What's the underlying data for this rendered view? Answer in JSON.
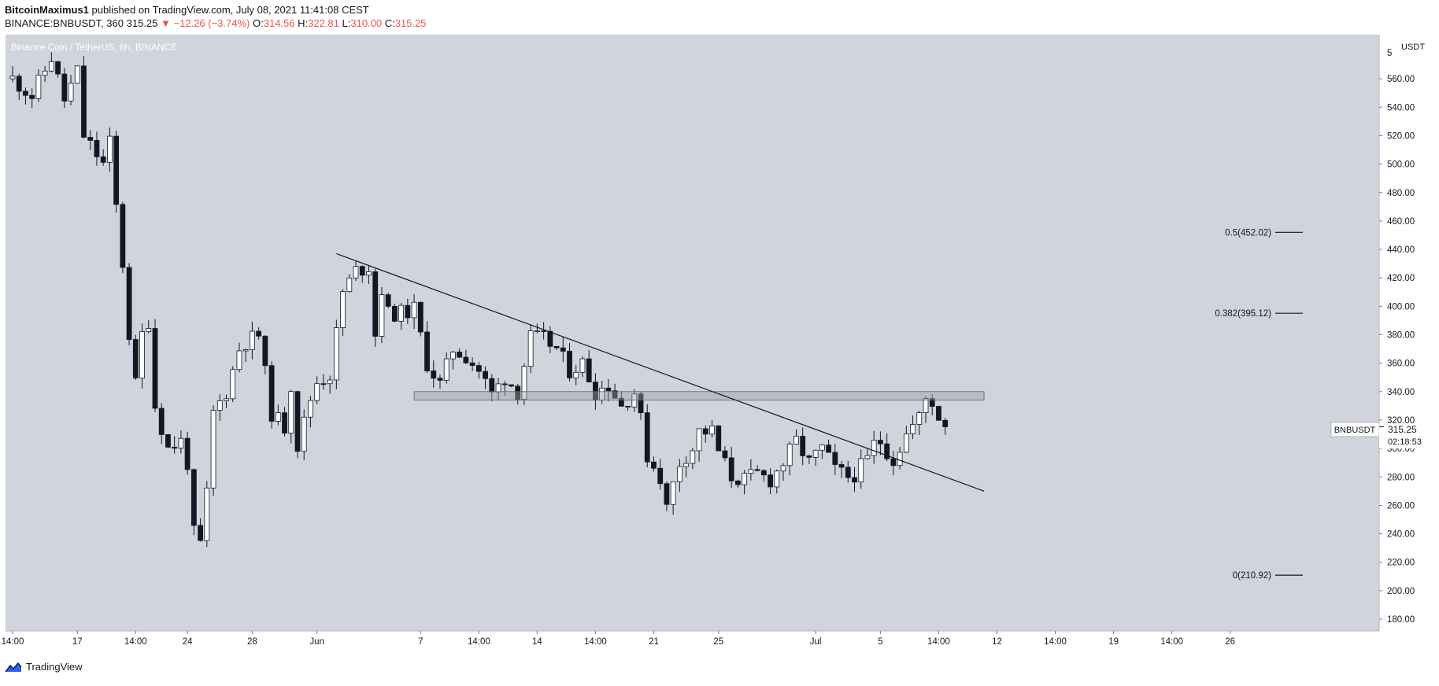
{
  "header": {
    "author": "BitcoinMaximus1",
    "published_text": "published on TradingView.com, July 08, 2021 11:41:08 CEST",
    "symbol_line": "BINANCE:BNBUSDT, 360",
    "last": "315.25",
    "change": "−12.26 (−3.74%)",
    "o_label": "O:",
    "o_val": "314.56",
    "h_label": "H:",
    "h_val": "322.81",
    "l_label": "L:",
    "l_val": "310.00",
    "c_label": "C:",
    "c_val": "315.25"
  },
  "chart_title": "Binance Coin / TetherUS, 6h, BINANCE",
  "price_axis": {
    "unit": "USDT",
    "current_label": "315.25",
    "countdown": "02:18:53",
    "symbol_tag": "BNBUSDT"
  },
  "footer": {
    "brand": "TradingView"
  },
  "colors": {
    "background": "#d1d4dc",
    "up": "#ffffff",
    "down": "#131722",
    "accent_down": "#ef5350"
  },
  "chart_data": {
    "type": "candlestick",
    "ylim": [
      170,
      580
    ],
    "y_ticks": [
      180,
      200,
      220,
      240,
      260,
      280,
      300,
      320,
      340,
      360,
      380,
      400,
      420,
      440,
      460,
      480,
      500,
      520,
      540,
      560
    ],
    "y_tick_top_partial": "5",
    "x_ticks": [
      {
        "label": "14:00",
        "t": 0
      },
      {
        "label": "17",
        "t": 10
      },
      {
        "label": "14:00",
        "t": 19
      },
      {
        "label": "24",
        "t": 27
      },
      {
        "label": "28",
        "t": 37
      },
      {
        "label": "Jun",
        "t": 47
      },
      {
        "label": "7",
        "t": 63
      },
      {
        "label": "14:00",
        "t": 72
      },
      {
        "label": "14",
        "t": 81
      },
      {
        "label": "14:00",
        "t": 90
      },
      {
        "label": "21",
        "t": 99
      },
      {
        "label": "25",
        "t": 109
      },
      {
        "label": "Jul",
        "t": 124
      },
      {
        "label": "5",
        "t": 134
      },
      {
        "label": "14:00",
        "t": 143
      },
      {
        "label": "12",
        "t": 152
      },
      {
        "label": "14:00",
        "t": 161
      },
      {
        "label": "19",
        "t": 170
      },
      {
        "label": "14:00",
        "t": 179
      },
      {
        "label": "26",
        "t": 188
      }
    ],
    "anchors": [
      [
        0,
        560
      ],
      [
        3,
        548
      ],
      [
        6,
        575
      ],
      [
        8,
        545
      ],
      [
        10,
        565
      ],
      [
        11,
        520
      ],
      [
        14,
        500
      ],
      [
        15,
        515
      ],
      [
        16,
        470
      ],
      [
        17,
        430
      ],
      [
        18,
        380
      ],
      [
        19,
        345
      ],
      [
        20,
        380
      ],
      [
        21,
        390
      ],
      [
        22,
        330
      ],
      [
        24,
        300
      ],
      [
        26,
        305
      ],
      [
        27,
        290
      ],
      [
        28,
        240
      ],
      [
        29,
        232
      ],
      [
        30,
        268
      ],
      [
        31,
        325
      ],
      [
        33,
        340
      ],
      [
        35,
        370
      ],
      [
        36,
        375
      ],
      [
        38,
        380
      ],
      [
        40,
        325
      ],
      [
        42,
        315
      ],
      [
        43,
        345
      ],
      [
        44,
        302
      ],
      [
        46,
        335
      ],
      [
        47,
        347
      ],
      [
        49,
        352
      ],
      [
        51,
        410
      ],
      [
        53,
        425
      ],
      [
        55,
        428
      ],
      [
        56,
        380
      ],
      [
        57,
        412
      ],
      [
        58,
        395
      ],
      [
        60,
        395
      ],
      [
        62,
        398
      ],
      [
        64,
        360
      ],
      [
        66,
        345
      ],
      [
        68,
        370
      ],
      [
        70,
        365
      ],
      [
        72,
        355
      ],
      [
        74,
        338
      ],
      [
        76,
        350
      ],
      [
        78,
        340
      ],
      [
        80,
        378
      ],
      [
        82,
        377
      ],
      [
        84,
        370
      ],
      [
        86,
        355
      ],
      [
        88,
        360
      ],
      [
        90,
        340
      ],
      [
        92,
        345
      ],
      [
        94,
        330
      ],
      [
        96,
        340
      ],
      [
        97,
        320
      ],
      [
        98,
        295
      ],
      [
        100,
        280
      ],
      [
        101,
        258
      ],
      [
        102,
        275
      ],
      [
        103,
        290
      ],
      [
        105,
        300
      ],
      [
        106,
        312
      ],
      [
        108,
        312
      ],
      [
        109,
        298
      ],
      [
        111,
        280
      ],
      [
        113,
        278
      ],
      [
        115,
        282
      ],
      [
        117,
        278
      ],
      [
        119,
        290
      ],
      [
        121,
        305
      ],
      [
        123,
        290
      ],
      [
        125,
        300
      ],
      [
        127,
        285
      ],
      [
        129,
        280
      ],
      [
        130,
        282
      ],
      [
        132,
        292
      ],
      [
        133,
        303
      ],
      [
        134,
        305
      ],
      [
        136,
        292
      ],
      [
        138,
        310
      ],
      [
        140,
        322
      ],
      [
        141,
        335
      ],
      [
        142,
        333
      ],
      [
        143,
        322
      ],
      [
        144,
        315.25
      ]
    ],
    "descending_trendline": {
      "from": {
        "t": 50,
        "price": 437
      },
      "to": {
        "t": 150,
        "price": 270
      }
    },
    "resistance_zone": {
      "t_from": 62,
      "t_to": 150,
      "price_low": 334,
      "price_high": 340
    },
    "fibonacci_levels": [
      {
        "label": "0.5(452.02)",
        "value": 452.02
      },
      {
        "label": "0.382(395.12)",
        "value": 395.12
      },
      {
        "label": "0(210.92)",
        "value": 210.92
      }
    ],
    "last_price": 315.25
  }
}
